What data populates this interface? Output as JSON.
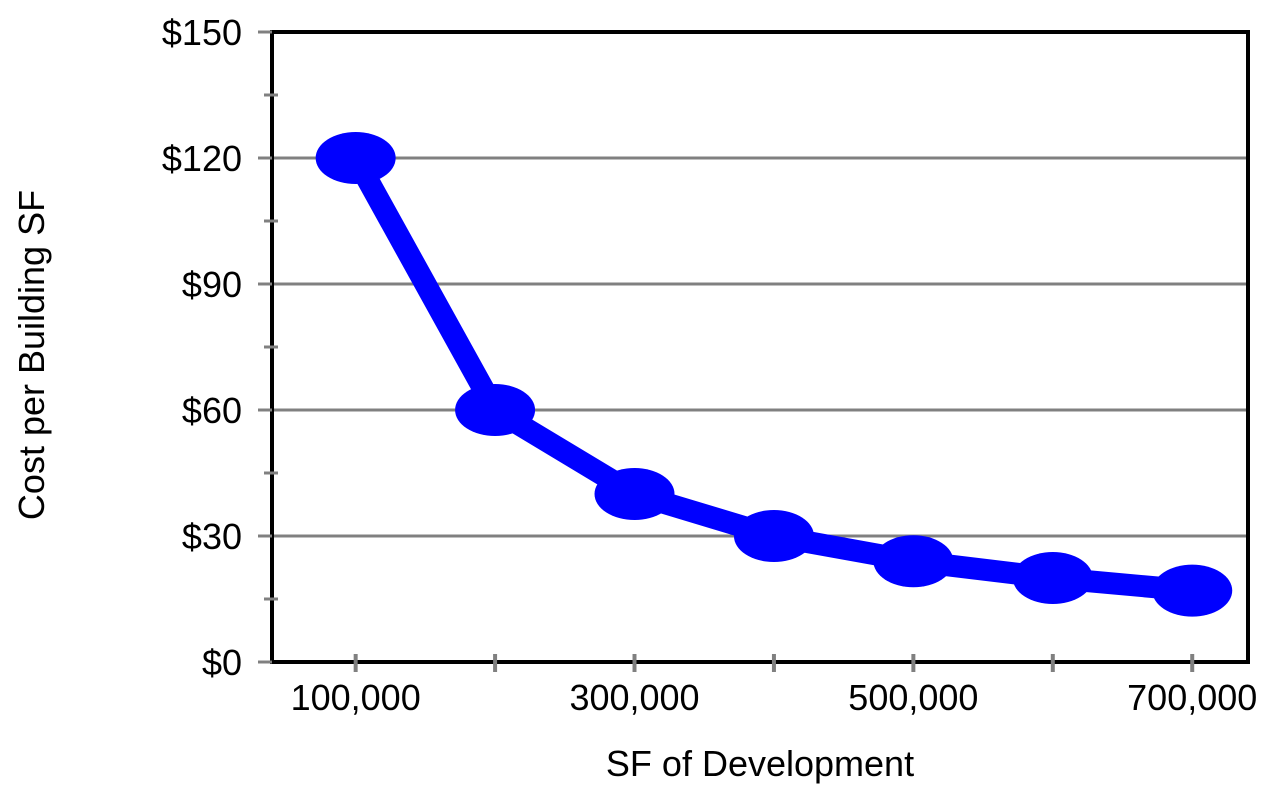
{
  "chart_data": {
    "type": "line",
    "title": "",
    "xlabel": "SF of Development",
    "ylabel": "Cost per Building SF",
    "x": [
      100000,
      200000,
      300000,
      400000,
      500000,
      600000,
      700000
    ],
    "series": [
      {
        "values": [
          120,
          60,
          40,
          30,
          24,
          20,
          17
        ],
        "color": "#0000ff"
      }
    ],
    "xlim": [
      40000,
      740000
    ],
    "ylim": [
      0,
      150
    ],
    "x_ticks": [
      100000,
      200000,
      300000,
      400000,
      500000,
      600000,
      700000
    ],
    "x_tick_labels": [
      "100,000",
      "",
      "300,000",
      "",
      "500,000",
      "",
      "700,000"
    ],
    "y_ticks": [
      0,
      30,
      60,
      90,
      120,
      150
    ],
    "y_tick_labels": [
      "$0",
      "$30",
      "$60",
      "$90",
      "$120",
      "$150"
    ],
    "y_minor_ticks": [
      15,
      45,
      75,
      105,
      135
    ],
    "grid": true,
    "legend": "none",
    "colors": {
      "line": "#0000ff",
      "grid": "#808080",
      "axis": "#000000",
      "tick": "#808080"
    }
  }
}
